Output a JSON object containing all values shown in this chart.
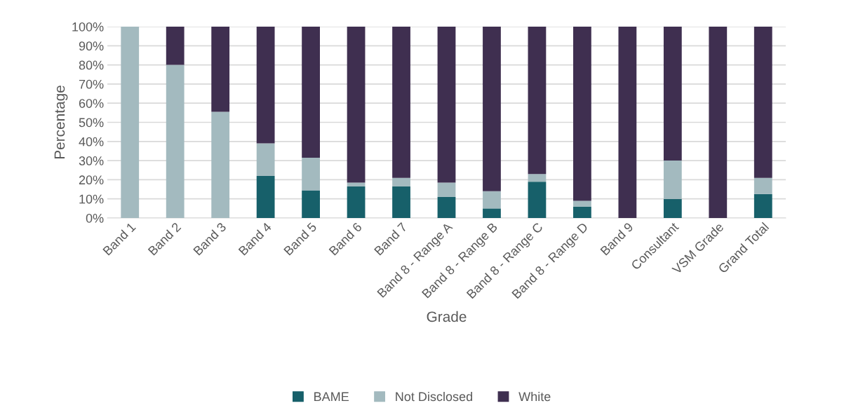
{
  "chart_data": {
    "type": "bar",
    "stacked": true,
    "xlabel": "Grade",
    "ylabel": "Percentage",
    "categories": [
      "Band 1",
      "Band 2",
      "Band 3",
      "Band 4",
      "Band 5",
      "Band 6",
      "Band 7",
      "Band 8 - Range A",
      "Band 8 - Range B",
      "Band 8 - Range C",
      "Band 8 - Range D",
      "Band 9",
      "Consultant",
      "VSM Grade",
      "Grand Total"
    ],
    "series": [
      {
        "name": "BAME",
        "color": "#17606a",
        "values": [
          0,
          0,
          0,
          22,
          14.5,
          16.5,
          16.5,
          11,
          5,
          19,
          6,
          0,
          10,
          0,
          12.5
        ]
      },
      {
        "name": "Not Disclosed",
        "color": "#a3babf",
        "values": [
          100,
          80,
          55.5,
          17,
          17,
          2,
          4.5,
          7.5,
          9,
          4,
          3,
          0,
          20,
          0,
          8.5
        ]
      },
      {
        "name": "White",
        "color": "#3f2f50",
        "values": [
          0,
          20,
          44.5,
          61,
          68.5,
          81.5,
          79,
          81.5,
          86,
          77,
          91,
          100,
          70,
          100,
          79
        ]
      }
    ],
    "ylim": [
      0,
      100
    ],
    "yticks": [
      {
        "value": 0,
        "label": "0%"
      },
      {
        "value": 10,
        "label": "10%"
      },
      {
        "value": 20,
        "label": "20%"
      },
      {
        "value": 30,
        "label": "30%"
      },
      {
        "value": 40,
        "label": "40%"
      },
      {
        "value": 50,
        "label": "50%"
      },
      {
        "value": 60,
        "label": "60%"
      },
      {
        "value": 70,
        "label": "70%"
      },
      {
        "value": 80,
        "label": "80%"
      },
      {
        "value": 90,
        "label": "90%"
      },
      {
        "value": 100,
        "label": "100%"
      }
    ],
    "grid": "y",
    "legend": "bottom"
  }
}
